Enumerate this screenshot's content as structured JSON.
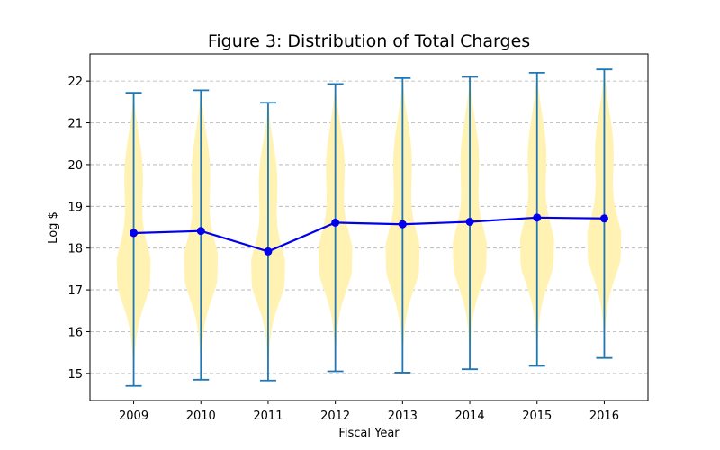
{
  "chart_data": {
    "type": "violin",
    "title": "Figure 3: Distribution of Total Charges",
    "xlabel": "Fiscal Year",
    "ylabel": "Log $",
    "categories": [
      "2009",
      "2010",
      "2011",
      "2012",
      "2013",
      "2014",
      "2015",
      "2016"
    ],
    "ylim": [
      14.35,
      22.65
    ],
    "yticks": [
      15,
      16,
      17,
      18,
      19,
      20,
      21,
      22
    ],
    "grid": "y-dashed",
    "distributions": [
      {
        "year": "2009",
        "min": 14.7,
        "max": 21.72
      },
      {
        "year": "2010",
        "min": 14.85,
        "max": 21.78
      },
      {
        "year": "2011",
        "min": 14.83,
        "max": 21.48
      },
      {
        "year": "2012",
        "min": 15.05,
        "max": 21.93
      },
      {
        "year": "2013",
        "min": 15.02,
        "max": 22.07
      },
      {
        "year": "2014",
        "min": 15.1,
        "max": 22.1
      },
      {
        "year": "2015",
        "min": 15.18,
        "max": 22.2
      },
      {
        "year": "2016",
        "min": 15.37,
        "max": 22.28
      }
    ],
    "series": [
      {
        "type": "line",
        "values": [
          18.36,
          18.41,
          17.92,
          18.61,
          18.57,
          18.63,
          18.73,
          18.71
        ],
        "color": "#0000ee"
      }
    ],
    "colors": {
      "violin": "#fff2b3",
      "whisker": "#1f77b4",
      "line": "#0000ee",
      "grid": "#b0b0b0"
    }
  }
}
